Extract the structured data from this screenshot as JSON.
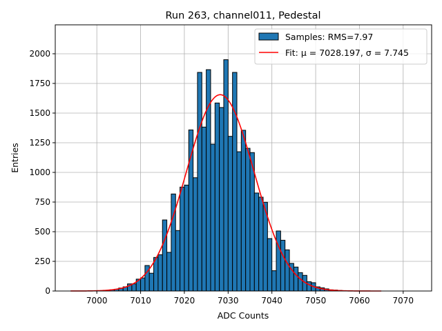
{
  "chart_data": {
    "type": "bar",
    "title": "Run 263, channel011, Pedestal",
    "xlabel": "ADC Counts",
    "ylabel": "Entries",
    "xlim": [
      6990.5,
      7076.5
    ],
    "ylim": [
      0,
      2244
    ],
    "xticks": [
      7000,
      7010,
      7020,
      7030,
      7040,
      7050,
      7060,
      7070
    ],
    "yticks": [
      0,
      250,
      500,
      750,
      1000,
      1250,
      1500,
      1750,
      2000
    ],
    "grid": true,
    "legend_position": "top-right",
    "histogram": {
      "name": "Samples: RMS=7.97",
      "color": "#1f77b4",
      "bin_width": 1,
      "bin_starts": [
        7001,
        7002,
        7003,
        7004,
        7005,
        7006,
        7007,
        7008,
        7009,
        7010,
        7011,
        7012,
        7013,
        7014,
        7015,
        7016,
        7017,
        7018,
        7019,
        7020,
        7021,
        7022,
        7023,
        7024,
        7025,
        7026,
        7027,
        7028,
        7029,
        7030,
        7031,
        7032,
        7033,
        7034,
        7035,
        7036,
        7037,
        7038,
        7039,
        7040,
        7041,
        7042,
        7043,
        7044,
        7045,
        7046,
        7047,
        7048,
        7049,
        7050,
        7051,
        7052,
        7053,
        7054,
        7055,
        7056
      ],
      "values": [
        3,
        5,
        10,
        15,
        25,
        35,
        60,
        60,
        100,
        110,
        215,
        150,
        283,
        306,
        599,
        326,
        818,
        510,
        876,
        893,
        1358,
        955,
        1843,
        1382,
        1866,
        1238,
        1585,
        1547,
        1950,
        1304,
        1843,
        1174,
        1355,
        1203,
        1167,
        826,
        791,
        748,
        442,
        171,
        506,
        428,
        347,
        233,
        202,
        155,
        132,
        78,
        70,
        35,
        27,
        18,
        10,
        8,
        5,
        3
      ]
    },
    "fit": {
      "name": "Fit: μ = 7028.197, σ = 7.745",
      "color": "#ff0000",
      "mu": 7028.197,
      "sigma": 7.745,
      "amplitude": 1655,
      "x_range": [
        6994,
        7065
      ]
    }
  }
}
